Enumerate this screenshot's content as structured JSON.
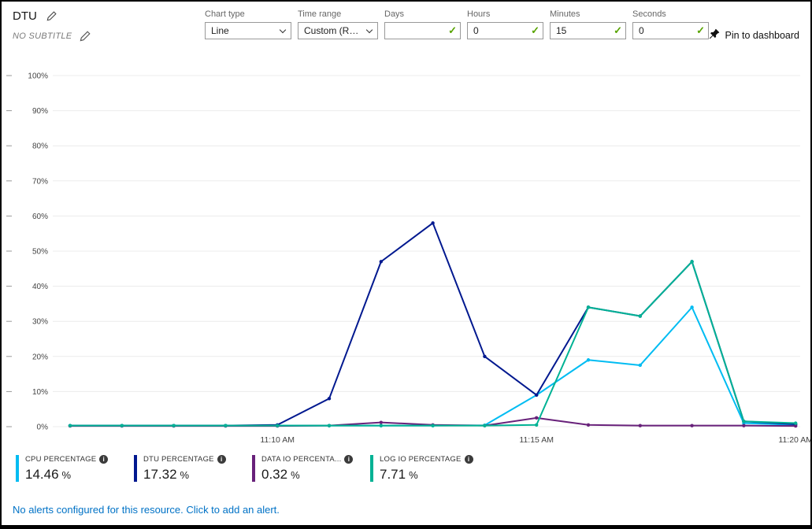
{
  "icons": {
    "info_glyph": "i",
    "check_glyph": "✓"
  },
  "colors": {
    "accent_link": "#0072c6",
    "valid_green": "#57a300"
  },
  "header": {
    "title": "DTU",
    "subtitle": "NO SUBTITLE",
    "controls": {
      "chart_type": {
        "label": "Chart type",
        "value": "Line"
      },
      "time_range": {
        "label": "Time range",
        "value": "Custom (Rela..."
      },
      "days": {
        "label": "Days",
        "value": ""
      },
      "hours": {
        "label": "Hours",
        "value": "0"
      },
      "minutes": {
        "label": "Minutes",
        "value": "15"
      },
      "seconds": {
        "label": "Seconds",
        "value": "0"
      }
    },
    "pin_label": "Pin to dashboard"
  },
  "chart_data": {
    "type": "line",
    "title": "DTU",
    "x_times": [
      "11:06 AM",
      "11:07 AM",
      "11:08 AM",
      "11:09 AM",
      "11:10 AM",
      "11:11 AM",
      "11:12 AM",
      "11:13 AM",
      "11:14 AM",
      "11:15 AM",
      "11:16 AM",
      "11:17 AM",
      "11:18 AM",
      "11:19 AM",
      "11:20 AM"
    ],
    "x_ticks": [
      {
        "i": 4,
        "label": "11:10 AM"
      },
      {
        "i": 9,
        "label": "11:15 AM"
      },
      {
        "i": 14,
        "label": "11:20 AM"
      }
    ],
    "ylim": [
      0,
      100
    ],
    "y_ticks": [
      {
        "v": 0,
        "label": "0%"
      },
      {
        "v": 10,
        "label": "10%"
      },
      {
        "v": 20,
        "label": "20%"
      },
      {
        "v": 30,
        "label": "30%"
      },
      {
        "v": 40,
        "label": "40%"
      },
      {
        "v": 50,
        "label": "50%"
      },
      {
        "v": 60,
        "label": "60%"
      },
      {
        "v": 70,
        "label": "70%"
      },
      {
        "v": 80,
        "label": "80%"
      },
      {
        "v": 90,
        "label": "90%"
      },
      {
        "v": 100,
        "label": "100%"
      }
    ],
    "grid": true,
    "legend_position": "bottom",
    "series": [
      {
        "name": "CPU PERCENTAGE",
        "color": "#00bcf2",
        "values": [
          0.3,
          0.3,
          0.3,
          0.3,
          0.3,
          0.3,
          0.3,
          0.3,
          0.4,
          9,
          19,
          17.5,
          34,
          1,
          0.5
        ]
      },
      {
        "name": "DTU PERCENTAGE",
        "color": "#00188f",
        "values": [
          0.3,
          0.3,
          0.3,
          0.3,
          0.5,
          8,
          47,
          58,
          20,
          9,
          34,
          31.5,
          47,
          1.5,
          0.7
        ]
      },
      {
        "name": "DATA IO PERCENTAGE",
        "color": "#68217a",
        "values": [
          0.2,
          0.2,
          0.2,
          0.2,
          0.2,
          0.3,
          1.2,
          0.5,
          0.3,
          2.5,
          0.5,
          0.3,
          0.3,
          0.3,
          0.2
        ]
      },
      {
        "name": "LOG IO PERCENTAGE",
        "color": "#00b294",
        "values": [
          0.3,
          0.3,
          0.3,
          0.3,
          0.3,
          0.3,
          0.3,
          0.3,
          0.3,
          0.5,
          34,
          31.5,
          47,
          1.5,
          1
        ]
      }
    ]
  },
  "legend": {
    "items": [
      {
        "label": "CPU PERCENTAGE",
        "value": "14.46",
        "unit": "%",
        "color": "#00bcf2"
      },
      {
        "label": "DTU PERCENTAGE",
        "value": "17.32",
        "unit": "%",
        "color": "#00188f"
      },
      {
        "label": "DATA IO PERCENTA...",
        "value": "0.32",
        "unit": "%",
        "color": "#68217a"
      },
      {
        "label": "LOG IO PERCENTAGE",
        "value": "7.71",
        "unit": "%",
        "color": "#00b294"
      }
    ]
  },
  "footer": {
    "alerts_text": "No alerts configured for this resource.",
    "alerts_link": "Click to add an alert."
  }
}
